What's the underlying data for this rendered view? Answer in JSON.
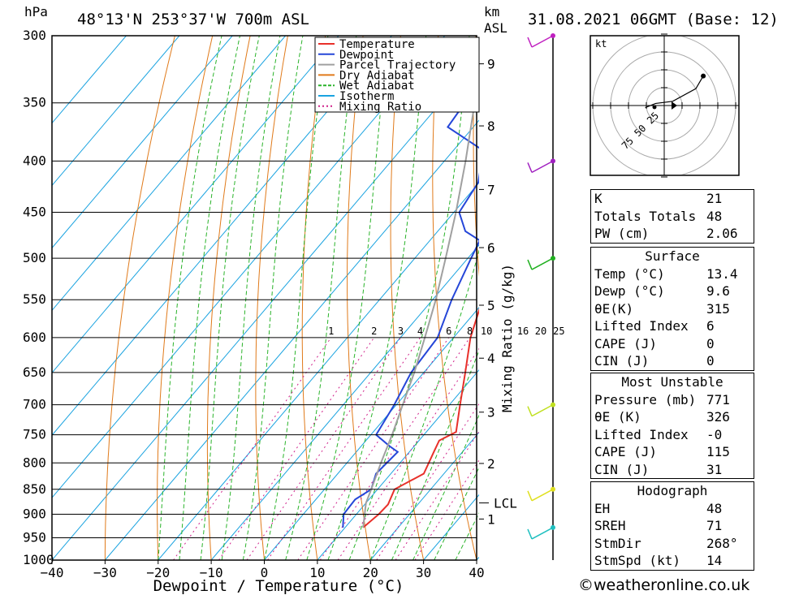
{
  "header": {
    "location": "48°13'N  253°37'W  700m  ASL",
    "datetime": "31.08.2021  06GMT  (Base: 12)",
    "hpa_label": "hPa",
    "km_label": "km",
    "asl_label": "ASL"
  },
  "x_axis_label": "Dewpoint / Temperature (°C)",
  "mixing_ratio_label": "Mixing Ratio (g/kg)",
  "lcl_label": "LCL",
  "hodograph_label": "kt",
  "legend": [
    {
      "label": "Temperature",
      "color": "#e8302a"
    },
    {
      "label": "Dewpoint",
      "color": "#2546d8"
    },
    {
      "label": "Parcel Trajectory",
      "color": "#a0a0a0"
    },
    {
      "label": "Dry Adiabat",
      "color": "#e07a1a"
    },
    {
      "label": "Wet Adiabat",
      "color": "#2ab32a"
    },
    {
      "label": "Isotherm",
      "color": "#1aa3e0"
    },
    {
      "label": "Mixing Ratio",
      "color": "#d0208a"
    }
  ],
  "chart_data": {
    "type": "line",
    "title": "48°13'N  253°37'W  700m  ASL",
    "xlabel": "Dewpoint / Temperature (°C)",
    "ylabel": "hPa",
    "x_ticks": [
      -40,
      -30,
      -20,
      -10,
      0,
      10,
      20,
      30,
      40
    ],
    "xlim": [
      -40,
      40
    ],
    "pressure_levels": [
      300,
      350,
      400,
      450,
      500,
      550,
      600,
      650,
      700,
      750,
      800,
      850,
      900,
      950,
      1000
    ],
    "ylim": [
      1000,
      300
    ],
    "km_ticks": [
      {
        "label": "1",
        "p": 910
      },
      {
        "label": "2",
        "p": 801
      },
      {
        "label": "3",
        "p": 712
      },
      {
        "label": "4",
        "p": 629
      },
      {
        "label": "5",
        "p": 557
      },
      {
        "label": "6",
        "p": 488
      },
      {
        "label": "7",
        "p": 427
      },
      {
        "label": "8",
        "p": 369
      },
      {
        "label": "9",
        "p": 320
      }
    ],
    "mixing_ratio_labels": [
      "1",
      "2",
      "3",
      "4",
      "6",
      "8",
      "10",
      "16",
      "20",
      "25"
    ],
    "mixing_ratio_values": [
      1,
      2,
      3,
      4,
      6,
      8,
      10,
      16,
      20,
      25
    ],
    "lcl_pressure": 877,
    "series": [
      {
        "name": "Temperature",
        "points": [
          [
            928,
            13.4
          ],
          [
            900,
            14.2
          ],
          [
            880,
            14.4
          ],
          [
            850,
            13.2
          ],
          [
            820,
            16.2
          ],
          [
            780,
            14.6
          ],
          [
            760,
            13.8
          ],
          [
            745,
            15.6
          ],
          [
            700,
            12.0
          ],
          [
            650,
            7.8
          ],
          [
            600,
            3.2
          ],
          [
            550,
            -0.6
          ],
          [
            525,
            -2.6
          ],
          [
            500,
            -4.2
          ],
          [
            480,
            -5.8
          ],
          [
            450,
            -8.6
          ],
          [
            420,
            -11.8
          ],
          [
            380,
            -18.0
          ],
          [
            360,
            -20.4
          ],
          [
            330,
            -25.4
          ],
          [
            300,
            -30.4
          ]
        ]
      },
      {
        "name": "Dewpoint",
        "points": [
          [
            928,
            9.6
          ],
          [
            900,
            7.6
          ],
          [
            870,
            7.4
          ],
          [
            850,
            8.8
          ],
          [
            820,
            7.2
          ],
          [
            780,
            7.8
          ],
          [
            770,
            5.4
          ],
          [
            750,
            1.0
          ],
          [
            700,
            -0.4
          ],
          [
            650,
            -2.4
          ],
          [
            600,
            -3.0
          ],
          [
            550,
            -6.4
          ],
          [
            500,
            -9.4
          ],
          [
            480,
            -10.6
          ],
          [
            470,
            -14.8
          ],
          [
            450,
            -19.0
          ],
          [
            420,
            -20.2
          ],
          [
            400,
            -23.0
          ],
          [
            390,
            -24.6
          ],
          [
            370,
            -34.8
          ],
          [
            340,
            -35.8
          ],
          [
            300,
            -38.6
          ]
        ]
      },
      {
        "name": "Parcel Trajectory",
        "points": [
          [
            928,
            13.4
          ],
          [
            877,
            10.0
          ],
          [
            850,
            8.8
          ],
          [
            800,
            6.4
          ],
          [
            750,
            4.0
          ],
          [
            700,
            1.2
          ],
          [
            650,
            -1.8
          ],
          [
            600,
            -5.4
          ],
          [
            550,
            -9.4
          ],
          [
            500,
            -14.2
          ],
          [
            450,
            -19.6
          ],
          [
            400,
            -26.0
          ],
          [
            350,
            -33.6
          ],
          [
            300,
            -42.4
          ]
        ]
      }
    ],
    "wind_barbs": [
      {
        "p": 928,
        "color": "#20c0c0"
      },
      {
        "p": 850,
        "color": "#e0e020"
      },
      {
        "p": 700,
        "color": "#c0e020"
      },
      {
        "p": 500,
        "color": "#20b020"
      },
      {
        "p": 400,
        "color": "#a020c0"
      },
      {
        "p": 300,
        "color": "#c020c0"
      }
    ],
    "hodograph": {
      "ring_labels": [
        "25",
        "50",
        "75"
      ],
      "points": [
        [
          -18,
          -2
        ],
        [
          -8,
          2
        ],
        [
          8,
          4
        ],
        [
          30,
          16
        ],
        [
          37,
          28
        ]
      ]
    },
    "grid": true
  },
  "indices": {
    "k_label": "K",
    "k_value": "21",
    "tt_label": "Totals Totals",
    "tt_value": "48",
    "pw_label": "PW (cm)",
    "pw_value": "2.06"
  },
  "surface": {
    "title": "Surface",
    "temp_label": "Temp (°C)",
    "temp_value": "13.4",
    "dewp_label": "Dewp (°C)",
    "dewp_value": "9.6",
    "thetae_label": "θE(K)",
    "thetae_value": "315",
    "li_label": "Lifted Index",
    "li_value": "6",
    "cape_label": "CAPE (J)",
    "cape_value": "0",
    "cin_label": "CIN (J)",
    "cin_value": "0"
  },
  "most_unstable": {
    "title": "Most Unstable",
    "pressure_label": "Pressure (mb)",
    "pressure_value": "771",
    "thetae_label": "θE (K)",
    "thetae_value": "326",
    "li_label": "Lifted Index",
    "li_value": "-0",
    "cape_label": "CAPE (J)",
    "cape_value": "115",
    "cin_label": "CIN (J)",
    "cin_value": "31"
  },
  "hodograph_table": {
    "title": "Hodograph",
    "eh_label": "EH",
    "eh_value": "48",
    "sreh_label": "SREH",
    "sreh_value": "71",
    "stmdir_label": "StmDir",
    "stmdir_value": "268°",
    "stmspd_label": "StmSpd (kt)",
    "stmspd_value": "14"
  },
  "footer": "©weatheronline.co.uk"
}
